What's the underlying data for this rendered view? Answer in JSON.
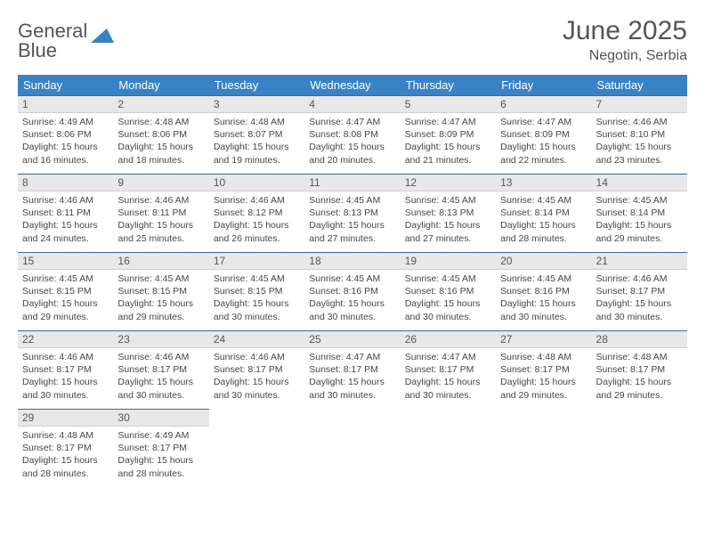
{
  "brand": {
    "word1": "General",
    "word2": "Blue"
  },
  "title": "June 2025",
  "location": "Negotin, Serbia",
  "colors": {
    "header_bg": "#3b82c4",
    "header_text": "#ffffff",
    "daynum_bg": "#e8e8e8",
    "daynum_border_top": "#3b6a9a",
    "body_text": "#464646",
    "title_text": "#555555"
  },
  "weekdays": [
    "Sunday",
    "Monday",
    "Tuesday",
    "Wednesday",
    "Thursday",
    "Friday",
    "Saturday"
  ],
  "weeks": [
    [
      {
        "n": "1",
        "sr": "4:49 AM",
        "ss": "8:06 PM",
        "dl": "15 hours and 16 minutes."
      },
      {
        "n": "2",
        "sr": "4:48 AM",
        "ss": "8:06 PM",
        "dl": "15 hours and 18 minutes."
      },
      {
        "n": "3",
        "sr": "4:48 AM",
        "ss": "8:07 PM",
        "dl": "15 hours and 19 minutes."
      },
      {
        "n": "4",
        "sr": "4:47 AM",
        "ss": "8:08 PM",
        "dl": "15 hours and 20 minutes."
      },
      {
        "n": "5",
        "sr": "4:47 AM",
        "ss": "8:09 PM",
        "dl": "15 hours and 21 minutes."
      },
      {
        "n": "6",
        "sr": "4:47 AM",
        "ss": "8:09 PM",
        "dl": "15 hours and 22 minutes."
      },
      {
        "n": "7",
        "sr": "4:46 AM",
        "ss": "8:10 PM",
        "dl": "15 hours and 23 minutes."
      }
    ],
    [
      {
        "n": "8",
        "sr": "4:46 AM",
        "ss": "8:11 PM",
        "dl": "15 hours and 24 minutes."
      },
      {
        "n": "9",
        "sr": "4:46 AM",
        "ss": "8:11 PM",
        "dl": "15 hours and 25 minutes."
      },
      {
        "n": "10",
        "sr": "4:46 AM",
        "ss": "8:12 PM",
        "dl": "15 hours and 26 minutes."
      },
      {
        "n": "11",
        "sr": "4:45 AM",
        "ss": "8:13 PM",
        "dl": "15 hours and 27 minutes."
      },
      {
        "n": "12",
        "sr": "4:45 AM",
        "ss": "8:13 PM",
        "dl": "15 hours and 27 minutes."
      },
      {
        "n": "13",
        "sr": "4:45 AM",
        "ss": "8:14 PM",
        "dl": "15 hours and 28 minutes."
      },
      {
        "n": "14",
        "sr": "4:45 AM",
        "ss": "8:14 PM",
        "dl": "15 hours and 29 minutes."
      }
    ],
    [
      {
        "n": "15",
        "sr": "4:45 AM",
        "ss": "8:15 PM",
        "dl": "15 hours and 29 minutes."
      },
      {
        "n": "16",
        "sr": "4:45 AM",
        "ss": "8:15 PM",
        "dl": "15 hours and 29 minutes."
      },
      {
        "n": "17",
        "sr": "4:45 AM",
        "ss": "8:15 PM",
        "dl": "15 hours and 30 minutes."
      },
      {
        "n": "18",
        "sr": "4:45 AM",
        "ss": "8:16 PM",
        "dl": "15 hours and 30 minutes."
      },
      {
        "n": "19",
        "sr": "4:45 AM",
        "ss": "8:16 PM",
        "dl": "15 hours and 30 minutes."
      },
      {
        "n": "20",
        "sr": "4:45 AM",
        "ss": "8:16 PM",
        "dl": "15 hours and 30 minutes."
      },
      {
        "n": "21",
        "sr": "4:46 AM",
        "ss": "8:17 PM",
        "dl": "15 hours and 30 minutes."
      }
    ],
    [
      {
        "n": "22",
        "sr": "4:46 AM",
        "ss": "8:17 PM",
        "dl": "15 hours and 30 minutes."
      },
      {
        "n": "23",
        "sr": "4:46 AM",
        "ss": "8:17 PM",
        "dl": "15 hours and 30 minutes."
      },
      {
        "n": "24",
        "sr": "4:46 AM",
        "ss": "8:17 PM",
        "dl": "15 hours and 30 minutes."
      },
      {
        "n": "25",
        "sr": "4:47 AM",
        "ss": "8:17 PM",
        "dl": "15 hours and 30 minutes."
      },
      {
        "n": "26",
        "sr": "4:47 AM",
        "ss": "8:17 PM",
        "dl": "15 hours and 30 minutes."
      },
      {
        "n": "27",
        "sr": "4:48 AM",
        "ss": "8:17 PM",
        "dl": "15 hours and 29 minutes."
      },
      {
        "n": "28",
        "sr": "4:48 AM",
        "ss": "8:17 PM",
        "dl": "15 hours and 29 minutes."
      }
    ],
    [
      {
        "n": "29",
        "sr": "4:48 AM",
        "ss": "8:17 PM",
        "dl": "15 hours and 28 minutes."
      },
      {
        "n": "30",
        "sr": "4:49 AM",
        "ss": "8:17 PM",
        "dl": "15 hours and 28 minutes."
      },
      null,
      null,
      null,
      null,
      null
    ]
  ],
  "labels": {
    "sunrise": "Sunrise: ",
    "sunset": "Sunset: ",
    "daylight": "Daylight: "
  }
}
